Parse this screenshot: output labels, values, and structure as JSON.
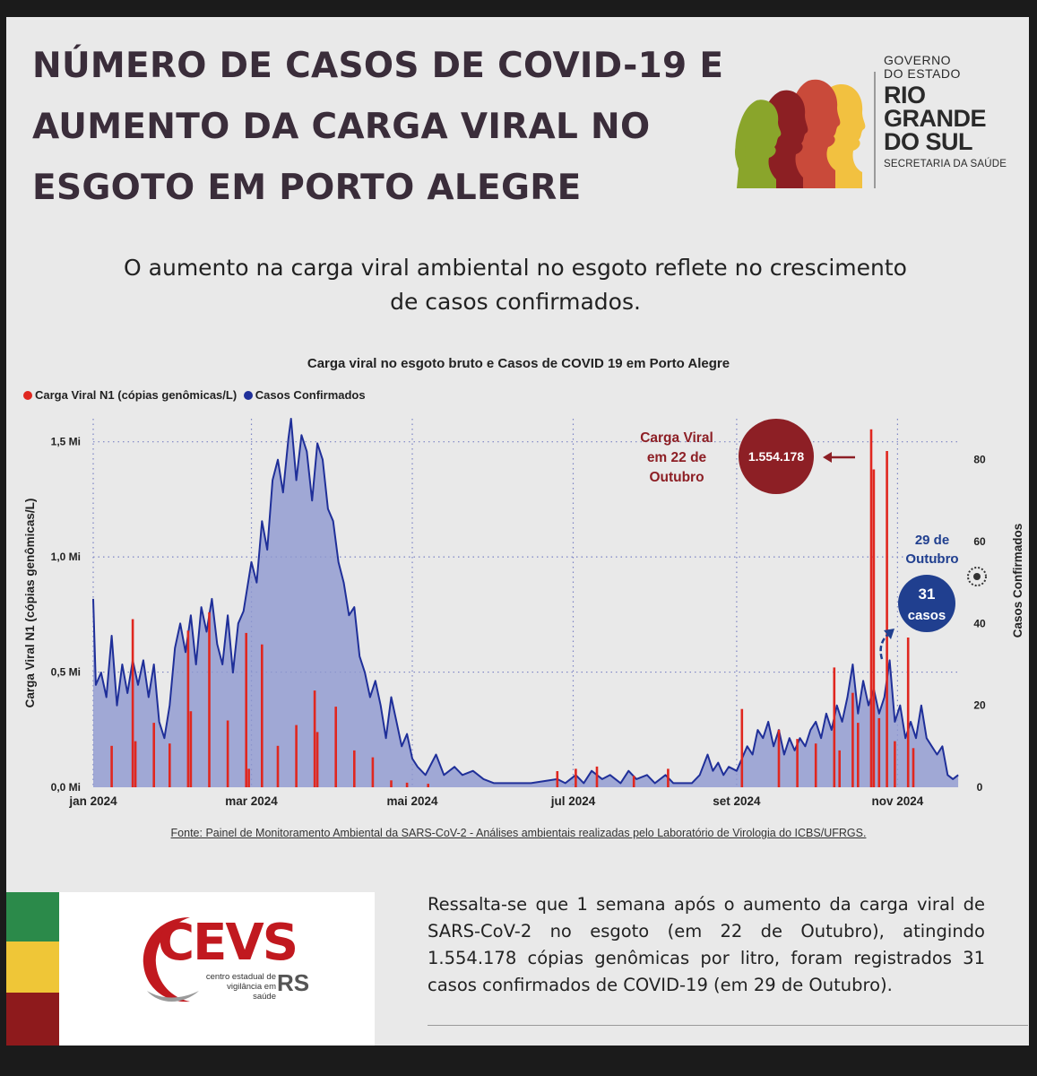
{
  "header": {
    "title_lines": [
      "NÚMERO DE CASOS DE COVID-19 E",
      "AUMENTO DA CARGA VIRAL NO",
      "ESGOTO EM PORTO ALEGRE"
    ],
    "subtitle_lines": [
      "O aumento na carga viral ambiental no esgoto reflete no crescimento",
      "de casos confirmados."
    ]
  },
  "government": {
    "line1": "GOVERNO",
    "line2": "DO ESTADO",
    "name_lines": [
      "RIO",
      "GRANDE",
      "DO SUL"
    ],
    "department": "SECRETARIA DA SAÚDE"
  },
  "colors": {
    "viral_red": "#e0271f",
    "cases_blue": "#1f2f99",
    "cases_fill": "#8d97cf",
    "annotation_red": "#8d1f25",
    "annotation_blue": "#203f8f",
    "flag_green": "#2b8a4a",
    "flag_yellow": "#efc637",
    "flag_red": "#8e1a1c"
  },
  "chart_data": {
    "type": "bar+area",
    "title": "Carga viral no esgoto bruto e Casos de COVID 19 em Porto Alegre",
    "legend": [
      {
        "label": "Carga Viral N1 (cópias genômicas/L)",
        "color": "#e0271f"
      },
      {
        "label": "Casos Confirmados",
        "color": "#1f2f99"
      }
    ],
    "legend_position": "top-left",
    "ylabel_left": "Carga Viral N1 (cópias genômicas/L)",
    "ylabel_right": "Casos Confirmados",
    "y_left_ticks": [
      "0,0 Mi",
      "0,5 Mi",
      "1,0 Mi",
      "1,5 Mi"
    ],
    "y_left_tick_values": [
      0,
      500000,
      1000000,
      1500000
    ],
    "y_left_range": [
      0,
      1600000
    ],
    "y_right_ticks": [
      "0",
      "20",
      "40",
      "60",
      "80"
    ],
    "y_right_tick_values": [
      0,
      20,
      40,
      60,
      80
    ],
    "y_right_range": [
      0,
      90
    ],
    "x_ticks": [
      "jan 2024",
      "mar 2024",
      "mai 2024",
      "jul 2024",
      "set 2024",
      "nov 2024"
    ],
    "x_tick_dates": [
      "2024-01-01",
      "2024-03-01",
      "2024-05-01",
      "2024-07-01",
      "2024-09-01",
      "2024-11-01"
    ],
    "x_range": [
      "2024-01-01",
      "2024-11-25"
    ],
    "grid": "dotted",
    "viral_load": [
      {
        "date": "2024-01-08",
        "value": 180000
      },
      {
        "date": "2024-01-16",
        "value": 730000
      },
      {
        "date": "2024-01-17",
        "value": 200000
      },
      {
        "date": "2024-01-24",
        "value": 280000
      },
      {
        "date": "2024-01-30",
        "value": 190000
      },
      {
        "date": "2024-02-06",
        "value": 680000
      },
      {
        "date": "2024-02-07",
        "value": 330000
      },
      {
        "date": "2024-02-14",
        "value": 760000
      },
      {
        "date": "2024-02-21",
        "value": 290000
      },
      {
        "date": "2024-02-28",
        "value": 670000
      },
      {
        "date": "2024-02-29",
        "value": 80000
      },
      {
        "date": "2024-03-05",
        "value": 620000
      },
      {
        "date": "2024-03-11",
        "value": 180000
      },
      {
        "date": "2024-03-18",
        "value": 270000
      },
      {
        "date": "2024-03-25",
        "value": 420000
      },
      {
        "date": "2024-03-26",
        "value": 240000
      },
      {
        "date": "2024-04-02",
        "value": 350000
      },
      {
        "date": "2024-04-09",
        "value": 160000
      },
      {
        "date": "2024-04-16",
        "value": 130000
      },
      {
        "date": "2024-04-23",
        "value": 30000
      },
      {
        "date": "2024-04-29",
        "value": 20000
      },
      {
        "date": "2024-05-07",
        "value": 15000
      },
      {
        "date": "2024-06-25",
        "value": 70000
      },
      {
        "date": "2024-07-02",
        "value": 80000
      },
      {
        "date": "2024-07-10",
        "value": 90000
      },
      {
        "date": "2024-07-24",
        "value": 50000
      },
      {
        "date": "2024-08-06",
        "value": 80000
      },
      {
        "date": "2024-09-03",
        "value": 340000
      },
      {
        "date": "2024-09-17",
        "value": 250000
      },
      {
        "date": "2024-09-24",
        "value": 210000
      },
      {
        "date": "2024-10-01",
        "value": 190000
      },
      {
        "date": "2024-10-08",
        "value": 520000
      },
      {
        "date": "2024-10-10",
        "value": 160000
      },
      {
        "date": "2024-10-15",
        "value": 410000
      },
      {
        "date": "2024-10-17",
        "value": 280000
      },
      {
        "date": "2024-10-22",
        "value": 1554178
      },
      {
        "date": "2024-10-23",
        "value": 1380000
      },
      {
        "date": "2024-10-25",
        "value": 300000
      },
      {
        "date": "2024-10-28",
        "value": 1460000
      },
      {
        "date": "2024-10-31",
        "value": 200000
      },
      {
        "date": "2024-11-05",
        "value": 650000
      },
      {
        "date": "2024-11-07",
        "value": 170000
      }
    ],
    "cases": [
      {
        "date": "2024-01-01",
        "value": 46
      },
      {
        "date": "2024-01-02",
        "value": 25
      },
      {
        "date": "2024-01-04",
        "value": 28
      },
      {
        "date": "2024-01-06",
        "value": 22
      },
      {
        "date": "2024-01-08",
        "value": 37
      },
      {
        "date": "2024-01-10",
        "value": 20
      },
      {
        "date": "2024-01-12",
        "value": 30
      },
      {
        "date": "2024-01-14",
        "value": 23
      },
      {
        "date": "2024-01-16",
        "value": 31
      },
      {
        "date": "2024-01-18",
        "value": 25
      },
      {
        "date": "2024-01-20",
        "value": 31
      },
      {
        "date": "2024-01-22",
        "value": 22
      },
      {
        "date": "2024-01-24",
        "value": 30
      },
      {
        "date": "2024-01-26",
        "value": 16
      },
      {
        "date": "2024-01-28",
        "value": 12
      },
      {
        "date": "2024-01-30",
        "value": 20
      },
      {
        "date": "2024-02-01",
        "value": 34
      },
      {
        "date": "2024-02-03",
        "value": 40
      },
      {
        "date": "2024-02-05",
        "value": 33
      },
      {
        "date": "2024-02-07",
        "value": 42
      },
      {
        "date": "2024-02-09",
        "value": 30
      },
      {
        "date": "2024-02-11",
        "value": 44
      },
      {
        "date": "2024-02-13",
        "value": 38
      },
      {
        "date": "2024-02-15",
        "value": 46
      },
      {
        "date": "2024-02-17",
        "value": 35
      },
      {
        "date": "2024-02-19",
        "value": 30
      },
      {
        "date": "2024-02-21",
        "value": 42
      },
      {
        "date": "2024-02-23",
        "value": 28
      },
      {
        "date": "2024-02-25",
        "value": 40
      },
      {
        "date": "2024-02-27",
        "value": 43
      },
      {
        "date": "2024-03-01",
        "value": 55
      },
      {
        "date": "2024-03-03",
        "value": 50
      },
      {
        "date": "2024-03-05",
        "value": 65
      },
      {
        "date": "2024-03-07",
        "value": 58
      },
      {
        "date": "2024-03-09",
        "value": 75
      },
      {
        "date": "2024-03-11",
        "value": 80
      },
      {
        "date": "2024-03-13",
        "value": 72
      },
      {
        "date": "2024-03-15",
        "value": 85
      },
      {
        "date": "2024-03-16",
        "value": 90
      },
      {
        "date": "2024-03-18",
        "value": 75
      },
      {
        "date": "2024-03-20",
        "value": 86
      },
      {
        "date": "2024-03-22",
        "value": 82
      },
      {
        "date": "2024-03-24",
        "value": 70
      },
      {
        "date": "2024-03-26",
        "value": 84
      },
      {
        "date": "2024-03-28",
        "value": 80
      },
      {
        "date": "2024-03-30",
        "value": 68
      },
      {
        "date": "2024-04-01",
        "value": 65
      },
      {
        "date": "2024-04-03",
        "value": 55
      },
      {
        "date": "2024-04-05",
        "value": 50
      },
      {
        "date": "2024-04-07",
        "value": 42
      },
      {
        "date": "2024-04-09",
        "value": 44
      },
      {
        "date": "2024-04-11",
        "value": 32
      },
      {
        "date": "2024-04-13",
        "value": 28
      },
      {
        "date": "2024-04-15",
        "value": 22
      },
      {
        "date": "2024-04-17",
        "value": 26
      },
      {
        "date": "2024-04-19",
        "value": 20
      },
      {
        "date": "2024-04-21",
        "value": 12
      },
      {
        "date": "2024-04-23",
        "value": 22
      },
      {
        "date": "2024-04-25",
        "value": 16
      },
      {
        "date": "2024-04-27",
        "value": 10
      },
      {
        "date": "2024-04-29",
        "value": 13
      },
      {
        "date": "2024-05-01",
        "value": 7
      },
      {
        "date": "2024-05-03",
        "value": 5
      },
      {
        "date": "2024-05-06",
        "value": 3
      },
      {
        "date": "2024-05-10",
        "value": 8
      },
      {
        "date": "2024-05-13",
        "value": 3
      },
      {
        "date": "2024-05-17",
        "value": 5
      },
      {
        "date": "2024-05-20",
        "value": 3
      },
      {
        "date": "2024-05-24",
        "value": 4
      },
      {
        "date": "2024-05-28",
        "value": 2
      },
      {
        "date": "2024-06-01",
        "value": 1
      },
      {
        "date": "2024-06-15",
        "value": 1
      },
      {
        "date": "2024-06-25",
        "value": 2
      },
      {
        "date": "2024-06-28",
        "value": 1
      },
      {
        "date": "2024-07-02",
        "value": 3
      },
      {
        "date": "2024-07-05",
        "value": 1
      },
      {
        "date": "2024-07-08",
        "value": 4
      },
      {
        "date": "2024-07-12",
        "value": 2
      },
      {
        "date": "2024-07-15",
        "value": 3
      },
      {
        "date": "2024-07-19",
        "value": 1
      },
      {
        "date": "2024-07-22",
        "value": 4
      },
      {
        "date": "2024-07-25",
        "value": 2
      },
      {
        "date": "2024-07-29",
        "value": 3
      },
      {
        "date": "2024-08-01",
        "value": 1
      },
      {
        "date": "2024-08-05",
        "value": 3
      },
      {
        "date": "2024-08-08",
        "value": 1
      },
      {
        "date": "2024-08-12",
        "value": 1
      },
      {
        "date": "2024-08-15",
        "value": 1
      },
      {
        "date": "2024-08-18",
        "value": 3
      },
      {
        "date": "2024-08-21",
        "value": 8
      },
      {
        "date": "2024-08-23",
        "value": 4
      },
      {
        "date": "2024-08-25",
        "value": 6
      },
      {
        "date": "2024-08-27",
        "value": 3
      },
      {
        "date": "2024-08-29",
        "value": 5
      },
      {
        "date": "2024-09-01",
        "value": 4
      },
      {
        "date": "2024-09-03",
        "value": 7
      },
      {
        "date": "2024-09-05",
        "value": 10
      },
      {
        "date": "2024-09-07",
        "value": 8
      },
      {
        "date": "2024-09-09",
        "value": 14
      },
      {
        "date": "2024-09-11",
        "value": 12
      },
      {
        "date": "2024-09-13",
        "value": 16
      },
      {
        "date": "2024-09-15",
        "value": 10
      },
      {
        "date": "2024-09-17",
        "value": 14
      },
      {
        "date": "2024-09-19",
        "value": 8
      },
      {
        "date": "2024-09-21",
        "value": 12
      },
      {
        "date": "2024-09-23",
        "value": 9
      },
      {
        "date": "2024-09-25",
        "value": 12
      },
      {
        "date": "2024-09-27",
        "value": 10
      },
      {
        "date": "2024-09-29",
        "value": 14
      },
      {
        "date": "2024-10-01",
        "value": 16
      },
      {
        "date": "2024-10-03",
        "value": 12
      },
      {
        "date": "2024-10-05",
        "value": 18
      },
      {
        "date": "2024-10-07",
        "value": 14
      },
      {
        "date": "2024-10-09",
        "value": 20
      },
      {
        "date": "2024-10-11",
        "value": 16
      },
      {
        "date": "2024-10-13",
        "value": 22
      },
      {
        "date": "2024-10-15",
        "value": 30
      },
      {
        "date": "2024-10-17",
        "value": 18
      },
      {
        "date": "2024-10-19",
        "value": 26
      },
      {
        "date": "2024-10-21",
        "value": 20
      },
      {
        "date": "2024-10-23",
        "value": 24
      },
      {
        "date": "2024-10-25",
        "value": 18
      },
      {
        "date": "2024-10-27",
        "value": 22
      },
      {
        "date": "2024-10-29",
        "value": 31
      },
      {
        "date": "2024-10-31",
        "value": 16
      },
      {
        "date": "2024-11-02",
        "value": 20
      },
      {
        "date": "2024-11-04",
        "value": 12
      },
      {
        "date": "2024-11-06",
        "value": 16
      },
      {
        "date": "2024-11-08",
        "value": 12
      },
      {
        "date": "2024-11-10",
        "value": 20
      },
      {
        "date": "2024-11-12",
        "value": 12
      },
      {
        "date": "2024-11-14",
        "value": 10
      },
      {
        "date": "2024-11-16",
        "value": 8
      },
      {
        "date": "2024-11-18",
        "value": 10
      },
      {
        "date": "2024-11-20",
        "value": 3
      },
      {
        "date": "2024-11-22",
        "value": 2
      },
      {
        "date": "2024-11-24",
        "value": 3
      }
    ],
    "annotations": {
      "viral": {
        "label_lines": [
          "Carga Viral",
          "em 22 de",
          "Outubro"
        ],
        "value": "1.554.178",
        "date": "2024-10-22"
      },
      "cases": {
        "label_lines": [
          "29 de",
          "Outubro"
        ],
        "value_lines": [
          "31",
          "casos"
        ],
        "date": "2024-10-29"
      }
    }
  },
  "source": "Fonte: Painel de Monitoramento Ambiental da SARS-CoV-2 - Análises ambientais realizadas pelo Laboratório de Virologia do ICBS/UFRGS.",
  "cevs": {
    "name": "CEVS",
    "subtitle_lines": [
      "centro estadual de",
      "vigilância em saúde"
    ],
    "state": "RS"
  },
  "bottom_text": "Ressalta-se que 1 semana após o aumento da carga viral de SARS-CoV-2 no esgoto (em 22 de Outubro), atingindo 1.554.178 cópias genômicas por litro, foram registrados 31 casos confirmados de COVID-19 (em 29 de Outubro)."
}
